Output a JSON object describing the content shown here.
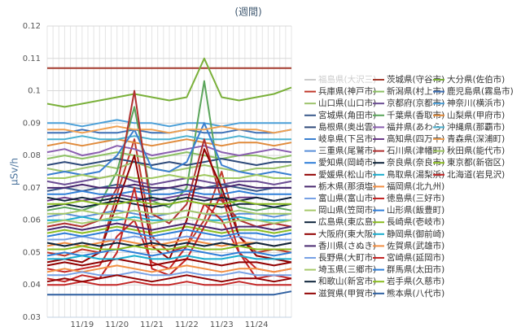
{
  "chart_data": {
    "type": "line",
    "title": "(週間)",
    "y_label": "μSv/h",
    "categories": [
      null,
      null,
      "11/19",
      null,
      "11/20",
      null,
      "11/21",
      null,
      "11/22",
      null,
      "11/23",
      null,
      "11/24",
      null,
      null
    ],
    "ylim": [
      0.03,
      0.12
    ],
    "yticks": [
      0.03,
      0.04,
      0.05,
      0.06,
      0.07,
      0.08,
      0.09,
      0.1,
      0.11,
      0.12
    ],
    "grid": true,
    "series": [
      {
        "name": "福島県(大沢三)",
        "color": "#c8cfd8",
        "visible": false,
        "values": [
          null,
          null,
          null,
          null,
          null,
          null,
          null,
          null,
          null,
          null,
          null,
          null,
          null,
          null,
          null
        ]
      },
      {
        "name": "茨城県(守谷市)",
        "color": "#a33a2e",
        "values": [
          0.107,
          0.107,
          0.107,
          0.107,
          0.107,
          0.107,
          0.107,
          0.107,
          0.107,
          0.107,
          0.107,
          0.107,
          0.107,
          0.107,
          0.107
        ]
      },
      {
        "name": "大分県(佐伯市)",
        "color": "#7ab03a",
        "values": [
          0.096,
          0.095,
          0.096,
          0.097,
          0.098,
          0.099,
          0.098,
          0.097,
          0.098,
          0.11,
          0.098,
          0.097,
          0.098,
          0.099,
          0.101
        ]
      },
      {
        "name": "兵庫県(神戸市)",
        "color": "#c0392b",
        "values": [
          0.05,
          0.049,
          0.051,
          0.05,
          0.068,
          0.085,
          0.055,
          0.05,
          0.052,
          0.06,
          0.075,
          0.055,
          0.05,
          0.051,
          0.05
        ]
      },
      {
        "name": "新潟県(村上市)",
        "color": "#8cc063",
        "values": [
          0.079,
          0.08,
          0.079,
          0.08,
          0.081,
          0.08,
          0.079,
          0.08,
          0.081,
          0.08,
          0.079,
          0.08,
          0.08,
          0.079,
          0.08
        ]
      },
      {
        "name": "鹿児島県(霧島市)",
        "color": "#3b6fb6",
        "values": [
          0.087,
          0.087,
          0.088,
          0.087,
          0.087,
          0.088,
          0.087,
          0.087,
          0.088,
          0.087,
          0.087,
          0.088,
          0.087,
          0.087,
          0.088
        ]
      },
      {
        "name": "山口県(山口市)",
        "color": "#9cc36b",
        "values": [
          0.076,
          0.075,
          0.076,
          0.077,
          0.076,
          0.078,
          0.076,
          0.075,
          0.076,
          0.077,
          0.076,
          0.075,
          0.076,
          0.076,
          0.077
        ]
      },
      {
        "name": "京都府(京都市)",
        "color": "#6a4c93",
        "values": [
          0.072,
          0.071,
          0.072,
          0.073,
          0.074,
          0.072,
          0.071,
          0.072,
          0.073,
          0.072,
          0.071,
          0.072,
          0.072,
          0.071,
          0.072
        ]
      },
      {
        "name": "神奈川(横浜市)",
        "color": "#4a9fd8",
        "values": [
          0.09,
          0.09,
          0.089,
          0.09,
          0.091,
          0.09,
          0.09,
          0.089,
          0.09,
          0.09,
          0.089,
          0.09,
          0.09,
          0.09,
          0.09
        ]
      },
      {
        "name": "宮城県(角田市)",
        "color": "#3a5a8c",
        "values": [
          0.069,
          0.07,
          0.069,
          0.07,
          0.071,
          0.07,
          0.069,
          0.07,
          0.069,
          0.07,
          0.071,
          0.07,
          0.069,
          0.07,
          0.07
        ]
      },
      {
        "name": "千葉県(香取市)",
        "color": "#5ba55b",
        "values": [
          0.063,
          0.064,
          0.063,
          0.065,
          0.075,
          0.095,
          0.066,
          0.064,
          0.07,
          0.103,
          0.068,
          0.064,
          0.063,
          0.064,
          0.063
        ]
      },
      {
        "name": "山梨県(甲府市)",
        "color": "#e08a3a",
        "values": [
          0.083,
          0.084,
          0.083,
          0.084,
          0.085,
          0.084,
          0.083,
          0.084,
          0.085,
          0.084,
          0.083,
          0.084,
          0.084,
          0.083,
          0.084
        ]
      },
      {
        "name": "島根県(奥出雲)",
        "color": "#2e4a7a",
        "values": [
          0.077,
          0.078,
          0.077,
          0.078,
          0.079,
          0.078,
          0.077,
          0.078,
          0.077,
          0.078,
          0.079,
          0.078,
          0.077,
          0.078,
          0.078
        ]
      },
      {
        "name": "福井県(あわら)",
        "color": "#8a5fb0",
        "values": [
          0.081,
          0.082,
          0.08,
          0.081,
          0.083,
          0.082,
          0.08,
          0.081,
          0.082,
          0.083,
          0.081,
          0.08,
          0.081,
          0.082,
          0.081
        ]
      },
      {
        "name": "沖縄県(那覇市)",
        "color": "#4ab0d0",
        "values": [
          0.085,
          0.085,
          0.086,
          0.085,
          0.085,
          0.086,
          0.085,
          0.085,
          0.086,
          0.085,
          0.085,
          0.086,
          0.085,
          0.085,
          0.085
        ]
      },
      {
        "name": "岐阜県(下呂市)",
        "color": "#3a7fd0",
        "values": [
          0.074,
          0.075,
          0.074,
          0.075,
          0.08,
          0.088,
          0.076,
          0.075,
          0.078,
          0.09,
          0.077,
          0.075,
          0.074,
          0.075,
          0.074
        ]
      },
      {
        "name": "高知県(四万十)",
        "color": "#6b3a8a",
        "values": [
          0.066,
          0.067,
          0.066,
          0.067,
          0.068,
          0.067,
          0.066,
          0.067,
          0.068,
          0.067,
          0.066,
          0.067,
          0.067,
          0.066,
          0.067
        ]
      },
      {
        "name": "青森県(深浦町)",
        "color": "#f0a050",
        "values": [
          0.088,
          0.088,
          0.087,
          0.088,
          0.089,
          0.088,
          0.088,
          0.087,
          0.088,
          0.088,
          0.089,
          0.088,
          0.088,
          0.087,
          0.088
        ]
      },
      {
        "name": "三重県(尾鷲市)",
        "color": "#5a8fd8",
        "values": [
          0.061,
          0.062,
          0.061,
          0.062,
          0.063,
          0.062,
          0.061,
          0.062,
          0.063,
          0.062,
          0.061,
          0.062,
          0.062,
          0.061,
          0.062
        ]
      },
      {
        "name": "石川県(津幡町)",
        "color": "#b03030",
        "values": [
          0.058,
          0.059,
          0.058,
          0.06,
          0.07,
          0.1,
          0.062,
          0.059,
          0.065,
          0.085,
          0.066,
          0.06,
          0.058,
          0.059,
          0.058
        ]
      },
      {
        "name": "秋田県(能代市)",
        "color": "#a0c860",
        "values": [
          0.073,
          0.073,
          0.074,
          0.073,
          0.074,
          0.073,
          0.073,
          0.074,
          0.073,
          0.074,
          0.073,
          0.073,
          0.074,
          0.073,
          0.073
        ]
      },
      {
        "name": "愛知県(岡崎市)",
        "color": "#2f7ed8",
        "values": [
          0.068,
          0.068,
          0.069,
          0.068,
          0.068,
          0.069,
          0.068,
          0.068,
          0.069,
          0.068,
          0.068,
          0.069,
          0.068,
          0.068,
          0.068
        ]
      },
      {
        "name": "奈良県(奈良市)",
        "color": "#0d233a",
        "values": [
          0.064,
          0.065,
          0.064,
          0.065,
          0.066,
          0.065,
          0.064,
          0.065,
          0.066,
          0.065,
          0.064,
          0.065,
          0.065,
          0.064,
          0.065
        ]
      },
      {
        "name": "東京都(新宿区)",
        "color": "#8bbc21",
        "values": [
          0.056,
          0.057,
          0.056,
          0.057,
          0.058,
          0.057,
          0.056,
          0.057,
          0.058,
          0.057,
          0.056,
          0.057,
          0.057,
          0.056,
          0.057
        ]
      },
      {
        "name": "愛媛県(松山市)",
        "color": "#910000",
        "values": [
          0.047,
          0.048,
          0.047,
          0.05,
          0.065,
          0.08,
          0.052,
          0.048,
          0.06,
          0.082,
          0.07,
          0.055,
          0.049,
          0.048,
          0.047
        ]
      },
      {
        "name": "鳥取県(湯梨浜)",
        "color": "#1aadce",
        "values": [
          0.06,
          0.06,
          0.061,
          0.06,
          0.06,
          0.061,
          0.06,
          0.06,
          0.061,
          0.06,
          0.06,
          0.061,
          0.06,
          0.06,
          0.06
        ]
      },
      {
        "name": "北海道(岩見沢)",
        "color": "#c42525",
        "values": [
          0.045,
          0.044,
          0.045,
          0.046,
          0.055,
          0.06,
          0.047,
          0.045,
          0.052,
          0.065,
          0.06,
          0.05,
          0.045,
          0.044,
          0.045
        ]
      },
      {
        "name": "栃木県(那須塩)",
        "color": "#492970",
        "values": [
          0.07,
          0.07,
          0.071,
          0.07,
          0.07,
          0.071,
          0.07,
          0.07,
          0.071,
          0.07,
          0.07,
          0.071,
          0.07,
          0.07,
          0.07
        ]
      },
      {
        "name": "福岡県(北九州)",
        "color": "#f28f43",
        "values": [
          0.052,
          0.053,
          0.052,
          0.053,
          0.054,
          0.053,
          0.052,
          0.053,
          0.054,
          0.053,
          0.052,
          0.053,
          0.053,
          0.052,
          0.053
        ]
      },
      {
        "name": "富山県(富山市)",
        "color": "#77a1e5",
        "values": [
          0.054,
          0.054,
          0.055,
          0.054,
          0.054,
          0.055,
          0.054,
          0.054,
          0.055,
          0.054,
          0.054,
          0.055,
          0.054,
          0.054,
          0.054
        ]
      },
      {
        "name": "徳島県(三好市)",
        "color": "#c42525",
        "values": [
          0.042,
          0.041,
          0.043,
          0.042,
          0.05,
          0.07,
          0.045,
          0.043,
          0.048,
          0.058,
          0.068,
          0.05,
          0.042,
          0.043,
          0.042
        ]
      },
      {
        "name": "岡山県(笠岡市)",
        "color": "#a6c96a",
        "values": [
          0.059,
          0.06,
          0.059,
          0.06,
          0.061,
          0.06,
          0.059,
          0.06,
          0.061,
          0.06,
          0.059,
          0.06,
          0.06,
          0.059,
          0.06
        ]
      },
      {
        "name": "山形県(飯豊町)",
        "color": "#2f7ed8",
        "values": [
          0.049,
          0.05,
          0.049,
          0.05,
          0.051,
          0.05,
          0.049,
          0.05,
          0.051,
          0.05,
          0.049,
          0.05,
          0.05,
          0.049,
          0.05
        ]
      },
      {
        "name": "広島県(東広島)",
        "color": "#0d233a",
        "values": [
          0.053,
          0.052,
          0.053,
          0.052,
          0.053,
          0.052,
          0.053,
          0.052,
          0.053,
          0.052,
          0.053,
          0.052,
          0.053,
          0.052,
          0.053
        ]
      },
      {
        "name": "長崎県(壱岐市)",
        "color": "#8bbc21",
        "values": [
          0.051,
          0.051,
          0.052,
          0.051,
          0.051,
          0.052,
          0.051,
          0.051,
          0.052,
          0.051,
          0.051,
          0.052,
          0.051,
          0.051,
          0.051
        ]
      },
      {
        "name": "大阪府(東大阪)",
        "color": "#910000",
        "values": [
          0.046,
          0.047,
          0.046,
          0.047,
          0.048,
          0.047,
          0.046,
          0.047,
          0.048,
          0.047,
          0.046,
          0.047,
          0.047,
          0.046,
          0.047
        ]
      },
      {
        "name": "静岡県(御前崎)",
        "color": "#1aadce",
        "values": [
          0.048,
          0.048,
          0.049,
          0.048,
          0.048,
          0.049,
          0.048,
          0.048,
          0.049,
          0.048,
          0.048,
          0.049,
          0.048,
          0.048,
          0.048
        ]
      },
      {
        "name": "香川県(さぬき)",
        "color": "#492970",
        "values": [
          0.057,
          0.058,
          0.057,
          0.058,
          0.059,
          0.058,
          0.057,
          0.058,
          0.059,
          0.058,
          0.057,
          0.058,
          0.058,
          0.057,
          0.058
        ]
      },
      {
        "name": "佐賀県(武雄市)",
        "color": "#f28f43",
        "values": [
          0.044,
          0.045,
          0.044,
          0.045,
          0.046,
          0.045,
          0.044,
          0.045,
          0.046,
          0.045,
          0.044,
          0.045,
          0.045,
          0.044,
          0.045
        ]
      },
      {
        "name": "長野県(大町市)",
        "color": "#77a1e5",
        "values": [
          0.043,
          0.043,
          0.044,
          0.043,
          0.043,
          0.044,
          0.043,
          0.043,
          0.044,
          0.043,
          0.043,
          0.044,
          0.043,
          0.043,
          0.043
        ]
      },
      {
        "name": "宮崎県(延岡市)",
        "color": "#c42525",
        "values": [
          0.04,
          0.04,
          0.041,
          0.04,
          0.04,
          0.041,
          0.04,
          0.04,
          0.041,
          0.04,
          0.04,
          0.041,
          0.04,
          0.04,
          0.04
        ]
      },
      {
        "name": "埼玉県(三郷市)",
        "color": "#a6c96a",
        "values": [
          0.062,
          0.062,
          0.063,
          0.062,
          0.062,
          0.063,
          0.062,
          0.062,
          0.063,
          0.062,
          0.062,
          0.063,
          0.062,
          0.062,
          0.062
        ]
      },
      {
        "name": "群馬県(太田市)",
        "color": "#2f7ed8",
        "values": [
          0.055,
          0.056,
          0.055,
          0.056,
          0.057,
          0.056,
          0.055,
          0.056,
          0.057,
          0.056,
          0.055,
          0.056,
          0.056,
          0.055,
          0.056
        ]
      },
      {
        "name": "和歌山(新宮市)",
        "color": "#0d233a",
        "values": [
          0.067,
          0.066,
          0.067,
          0.066,
          0.067,
          0.066,
          0.067,
          0.066,
          0.067,
          0.066,
          0.067,
          0.066,
          0.067,
          0.066,
          0.067
        ]
      },
      {
        "name": "岩手県(久慈市)",
        "color": "#8bbc21",
        "values": [
          0.065,
          0.065,
          0.066,
          0.065,
          0.065,
          0.066,
          0.065,
          0.065,
          0.066,
          0.065,
          0.065,
          0.066,
          0.065,
          0.065,
          0.065
        ]
      },
      {
        "name": "滋賀県(甲賀市)",
        "color": "#910000",
        "values": [
          0.041,
          0.042,
          0.041,
          0.042,
          0.043,
          0.042,
          0.041,
          0.042,
          0.043,
          0.042,
          0.041,
          0.042,
          0.042,
          0.041,
          0.042
        ]
      },
      {
        "name": "熊本県(八代市)",
        "color": "#2e5fa0",
        "values": [
          0.037,
          0.037,
          0.037,
          0.037,
          0.037,
          0.037,
          0.037,
          0.037,
          0.037,
          0.037,
          0.037,
          0.037,
          0.037,
          0.037,
          0.038
        ]
      }
    ]
  }
}
